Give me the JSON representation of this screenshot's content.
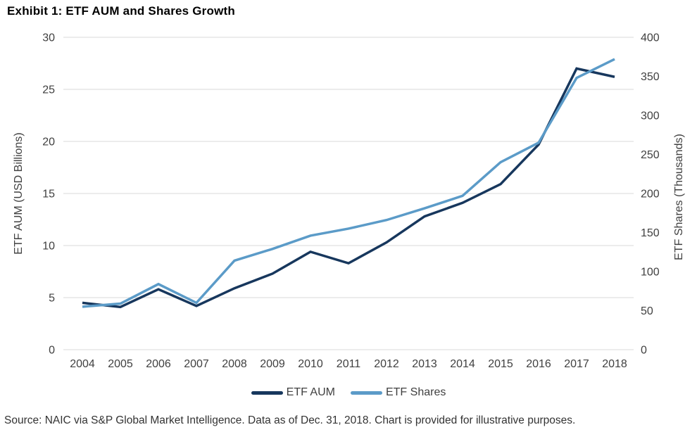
{
  "title": "Exhibit 1: ETF AUM and Shares Growth",
  "source": "Source: NAIC via S&P Global Market Intelligence. Data as of Dec. 31, 2018. Chart is provided for illustrative purposes.",
  "colors": {
    "aum_line": "#17375d",
    "shares_line": "#5b9bc8",
    "gridline": "#d9d9d9",
    "axis_text": "#404040",
    "title_text": "#000000"
  },
  "chart_data": {
    "type": "line",
    "title": "Exhibit 1: ETF AUM and Shares Growth",
    "categories": [
      "2004",
      "2005",
      "2006",
      "2007",
      "2008",
      "2009",
      "2010",
      "2011",
      "2012",
      "2013",
      "2014",
      "2015",
      "2016",
      "2017",
      "2018"
    ],
    "series": [
      {
        "name": "ETF AUM",
        "axis": "left",
        "color": "#17375d",
        "values": [
          4.5,
          4.1,
          5.8,
          4.2,
          5.9,
          7.3,
          9.4,
          8.3,
          10.3,
          12.8,
          14.1,
          15.9,
          19.7,
          27.0,
          26.2
        ]
      },
      {
        "name": "ETF Shares",
        "axis": "right",
        "color": "#5b9bc8",
        "values": [
          55,
          59,
          84,
          60,
          114,
          129,
          146,
          155,
          166,
          181,
          197,
          240,
          265,
          348,
          372
        ]
      }
    ],
    "ylabel_left": "ETF AUM (USD Billions)",
    "ylabel_right": "ETF Shares (Thousands)",
    "xlabel": "",
    "axes": {
      "left": {
        "min": 0,
        "max": 30,
        "ticks": [
          0,
          5,
          10,
          15,
          20,
          25,
          30
        ]
      },
      "right": {
        "min": 0,
        "max": 400,
        "ticks": [
          0,
          50,
          100,
          150,
          200,
          250,
          300,
          350,
          400
        ]
      }
    },
    "grid": "horizontal",
    "legend_position": "bottom"
  },
  "legend": {
    "items": [
      {
        "label": "ETF AUM"
      },
      {
        "label": "ETF Shares"
      }
    ]
  }
}
